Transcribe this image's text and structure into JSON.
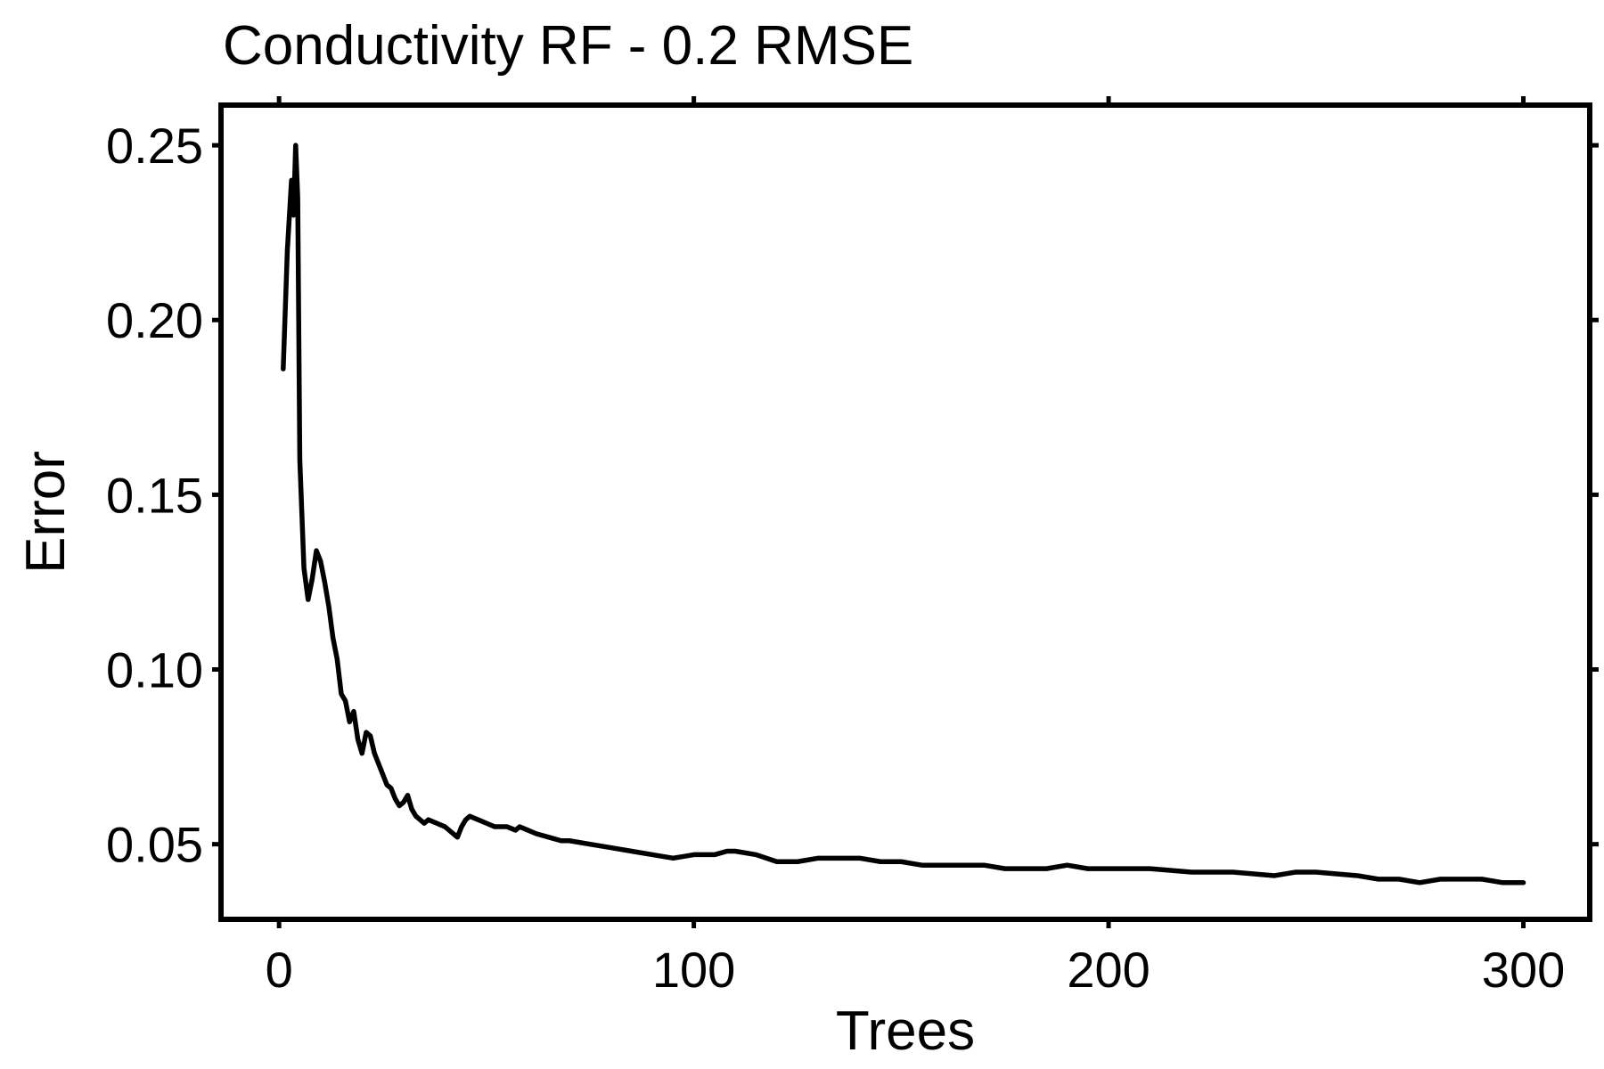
{
  "chart_data": {
    "type": "line",
    "title": "Conductivity RF - 0.2 RMSE",
    "xlabel": "Trees",
    "ylabel": "Error",
    "xlim": [
      -14,
      316
    ],
    "ylim": [
      0.0285,
      0.2615
    ],
    "xticks": [
      0,
      100,
      200,
      300
    ],
    "xtick_labels": [
      "0",
      "100",
      "200",
      "300"
    ],
    "yticks": [
      0.05,
      0.1,
      0.15,
      0.2,
      0.25
    ],
    "ytick_labels": [
      "0.05",
      "0.10",
      "0.15",
      "0.20",
      "0.25"
    ],
    "grid": false,
    "legend": "none",
    "colors": {
      "line": "#000000",
      "frame": "#000000",
      "background": "#ffffff"
    },
    "series": [
      {
        "x": [
          1,
          2,
          3,
          3.5,
          4,
          4.5,
          5,
          6,
          7,
          8,
          9,
          10,
          11,
          12,
          13,
          14,
          15,
          16,
          17,
          18,
          19,
          20,
          21,
          22,
          23,
          24,
          25,
          26,
          27,
          28,
          29,
          30,
          31,
          32,
          33,
          34,
          35,
          36,
          38,
          40,
          42,
          43,
          44,
          45,
          46,
          48,
          50,
          52,
          55,
          57,
          58,
          60,
          62,
          65,
          68,
          70,
          75,
          80,
          85,
          90,
          95,
          100,
          105,
          108,
          110,
          115,
          120,
          123,
          125,
          130,
          135,
          140,
          145,
          150,
          155,
          160,
          165,
          170,
          175,
          180,
          185,
          190,
          195,
          200,
          210,
          220,
          230,
          240,
          245,
          250,
          260,
          265,
          270,
          275,
          280,
          285,
          290,
          295,
          300
        ],
        "y": [
          0.186,
          0.22,
          0.24,
          0.23,
          0.25,
          0.235,
          0.16,
          0.129,
          0.12,
          0.126,
          0.134,
          0.131,
          0.125,
          0.118,
          0.109,
          0.103,
          0.093,
          0.091,
          0.085,
          0.088,
          0.08,
          0.076,
          0.082,
          0.081,
          0.076,
          0.073,
          0.07,
          0.067,
          0.066,
          0.063,
          0.061,
          0.062,
          0.064,
          0.06,
          0.058,
          0.057,
          0.056,
          0.057,
          0.056,
          0.055,
          0.053,
          0.052,
          0.055,
          0.057,
          0.058,
          0.057,
          0.056,
          0.055,
          0.055,
          0.054,
          0.055,
          0.054,
          0.053,
          0.052,
          0.051,
          0.051,
          0.05,
          0.049,
          0.048,
          0.047,
          0.046,
          0.047,
          0.047,
          0.048,
          0.048,
          0.047,
          0.045,
          0.045,
          0.045,
          0.046,
          0.046,
          0.046,
          0.045,
          0.045,
          0.044,
          0.044,
          0.044,
          0.044,
          0.043,
          0.043,
          0.043,
          0.044,
          0.043,
          0.043,
          0.043,
          0.042,
          0.042,
          0.041,
          0.042,
          0.042,
          0.041,
          0.04,
          0.04,
          0.039,
          0.04,
          0.04,
          0.04,
          0.039,
          0.039
        ]
      }
    ]
  }
}
